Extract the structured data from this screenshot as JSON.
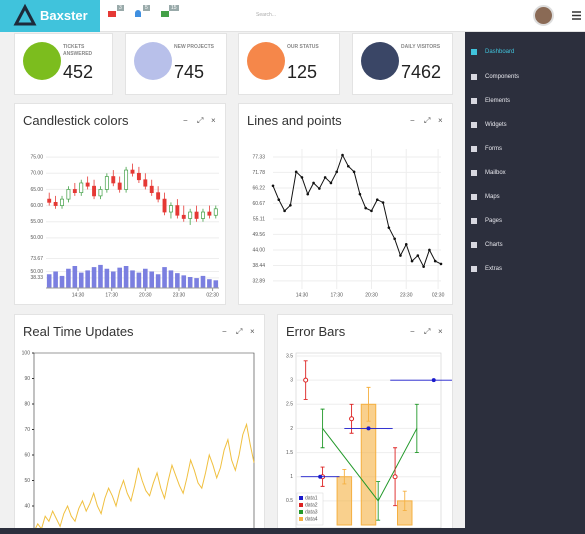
{
  "header": {
    "brand": "Baxster",
    "badges": [
      "3",
      "5",
      "15"
    ],
    "search": "Search..."
  },
  "menu": [
    "Dashboard",
    "Components",
    "Elements",
    "Widgets",
    "Forms",
    "Mailbox",
    "Maps",
    "Pages",
    "Charts",
    "Extras"
  ],
  "stats": [
    {
      "label": "TICKETS ANSWERED",
      "value": 452,
      "color": "#7cbd1e"
    },
    {
      "label": "NEW PROJECTS",
      "value": 745,
      "color": "#b8c0ea"
    },
    {
      "label": "OUR STATUS",
      "value": 125,
      "color": "#f5874a"
    },
    {
      "label": "DAILY VISITORS",
      "value": 7462,
      "color": "#3a4666"
    }
  ],
  "chart_data": [
    {
      "type": "candlestick",
      "title": "Candlestick colors",
      "up_color": "#43a047",
      "down_color": "#e53935",
      "volume_color": "#7b7fe0",
      "grid": true,
      "xlim": [
        0,
        27
      ],
      "xticks": [
        {
          "value": 5,
          "label": "14:30"
        },
        {
          "value": 10.25,
          "label": "17:30"
        },
        {
          "value": 15.5,
          "label": "20:30"
        },
        {
          "value": 20.75,
          "label": "23:30"
        },
        {
          "value": 26,
          "label": "02:30"
        }
      ],
      "ylim": [
        45,
        80
      ],
      "yticks": [
        {
          "value": 75,
          "label": "75.00"
        },
        {
          "value": 70,
          "label": "70.00"
        },
        {
          "value": 65,
          "label": "65.00"
        },
        {
          "value": 60,
          "label": "60.00"
        },
        {
          "value": 55,
          "label": "55.00"
        },
        {
          "value": 50,
          "label": "50.00"
        }
      ],
      "volume_ylim": [
        20,
        80
      ],
      "volume_ticks": [
        {
          "value": 73.67,
          "label": "73.67"
        },
        {
          "value": 50,
          "label": "50.00"
        },
        {
          "value": 38.33,
          "label": "38.33"
        }
      ],
      "ohlc": [
        [
          62,
          64,
          60,
          61
        ],
        [
          61,
          63,
          59,
          60
        ],
        [
          60,
          63,
          59,
          62
        ],
        [
          62,
          66,
          61,
          65
        ],
        [
          65,
          67,
          63,
          64
        ],
        [
          64,
          68,
          63,
          67
        ],
        [
          67,
          69,
          65,
          66
        ],
        [
          66,
          68,
          62,
          63
        ],
        [
          63,
          66,
          62,
          65
        ],
        [
          65,
          70,
          64,
          69
        ],
        [
          69,
          71,
          66,
          67
        ],
        [
          67,
          69,
          64,
          65
        ],
        [
          65,
          72,
          64,
          71
        ],
        [
          71,
          73,
          69,
          70
        ],
        [
          70,
          72,
          67,
          68
        ],
        [
          68,
          70,
          65,
          66
        ],
        [
          66,
          68,
          63,
          64
        ],
        [
          64,
          66,
          61,
          62
        ],
        [
          62,
          64,
          57,
          58
        ],
        [
          58,
          61,
          56,
          60
        ],
        [
          60,
          62,
          56,
          57
        ],
        [
          57,
          60,
          55,
          56
        ],
        [
          56,
          59,
          54,
          58
        ],
        [
          58,
          60,
          55,
          56
        ],
        [
          56,
          59,
          55,
          58
        ],
        [
          58,
          60,
          56,
          57
        ],
        [
          57,
          60,
          56,
          59
        ]
      ],
      "volume": [
        45,
        50,
        42,
        55,
        60,
        48,
        52,
        58,
        62,
        55,
        50,
        57,
        60,
        52,
        48,
        55,
        50,
        45,
        58,
        52,
        47,
        43,
        40,
        38,
        42,
        36,
        34
      ]
    },
    {
      "type": "line",
      "title": "Lines and points",
      "color": "#111111",
      "grid": true,
      "xlim": [
        0,
        29
      ],
      "xticks": [
        {
          "value": 5,
          "label": "14:30"
        },
        {
          "value": 11,
          "label": "17:30"
        },
        {
          "value": 17,
          "label": "20:30"
        },
        {
          "value": 23,
          "label": "23:30"
        },
        {
          "value": 28.5,
          "label": "02:30"
        }
      ],
      "ylim": [
        30,
        80
      ],
      "yticks": [
        {
          "value": 77.33,
          "label": "77.33"
        },
        {
          "value": 71.78,
          "label": "71.78"
        },
        {
          "value": 66.22,
          "label": "66.22"
        },
        {
          "value": 60.67,
          "label": "60.67"
        },
        {
          "value": 55.11,
          "label": "55.11"
        },
        {
          "value": 49.56,
          "label": "49.56"
        },
        {
          "value": 44,
          "label": "44.00"
        },
        {
          "value": 38.44,
          "label": "38.44"
        },
        {
          "value": 32.89,
          "label": "32.89"
        }
      ],
      "values": [
        67,
        62,
        58,
        60,
        72,
        70,
        64,
        68,
        66,
        70,
        68,
        72,
        78,
        74,
        72,
        64,
        59,
        58,
        62,
        61,
        52,
        48,
        42,
        46,
        40,
        42,
        38,
        44,
        40,
        39
      ]
    },
    {
      "type": "realtime",
      "title": "Real Time Updates",
      "color": "#f0c040",
      "xlim": [
        0,
        59
      ],
      "ylim": [
        0,
        100
      ],
      "yticks": [
        100,
        90,
        80,
        70,
        60,
        50,
        40
      ],
      "values": [
        30,
        33,
        31,
        36,
        34,
        38,
        35,
        32,
        37,
        40,
        36,
        34,
        39,
        42,
        38,
        41,
        45,
        40,
        37,
        43,
        47,
        44,
        40,
        46,
        50,
        45,
        42,
        48,
        55,
        50,
        46,
        44,
        49,
        53,
        47,
        43,
        50,
        56,
        52,
        48,
        45,
        51,
        58,
        54,
        49,
        47,
        53,
        60,
        56,
        51,
        55,
        62,
        66,
        58,
        54,
        60,
        68,
        72,
        64,
        57
      ]
    },
    {
      "type": "errorbar",
      "title": "Error Bars",
      "grid": true,
      "xlim": [
        0,
        6
      ],
      "ylim": [
        0,
        3.5
      ],
      "yticks": [
        3.5,
        3,
        2.5,
        2,
        1.5,
        1,
        0.5
      ],
      "series": [
        {
          "name": "data1",
          "color": "#1a1acc",
          "style": "points",
          "x": [
            1,
            3,
            5.7
          ],
          "values": [
            1,
            2,
            3
          ],
          "xerr": [
            0.8,
            1,
            1.8
          ]
        },
        {
          "name": "data2",
          "color": "#dd2222",
          "style": "open",
          "x": [
            0.4,
            2.3,
            4.1,
            1.1
          ],
          "values": [
            3,
            2.2,
            1,
            1
          ],
          "yerr": [
            0.4,
            0.3,
            0.6,
            0.2
          ]
        },
        {
          "name": "data3",
          "color": "#22992a",
          "style": "line",
          "x": [
            1.1,
            3.4,
            5
          ],
          "values": [
            2,
            0.5,
            2
          ],
          "yerr": [
            0.4,
            0.4,
            0.5
          ]
        },
        {
          "name": "data4",
          "color": "#f5b041",
          "style": "bar",
          "x": [
            2,
            3,
            4.5
          ],
          "values": [
            1,
            2.5,
            0.5
          ],
          "yerr": [
            0.15,
            0.35,
            0.2
          ]
        }
      ]
    }
  ]
}
